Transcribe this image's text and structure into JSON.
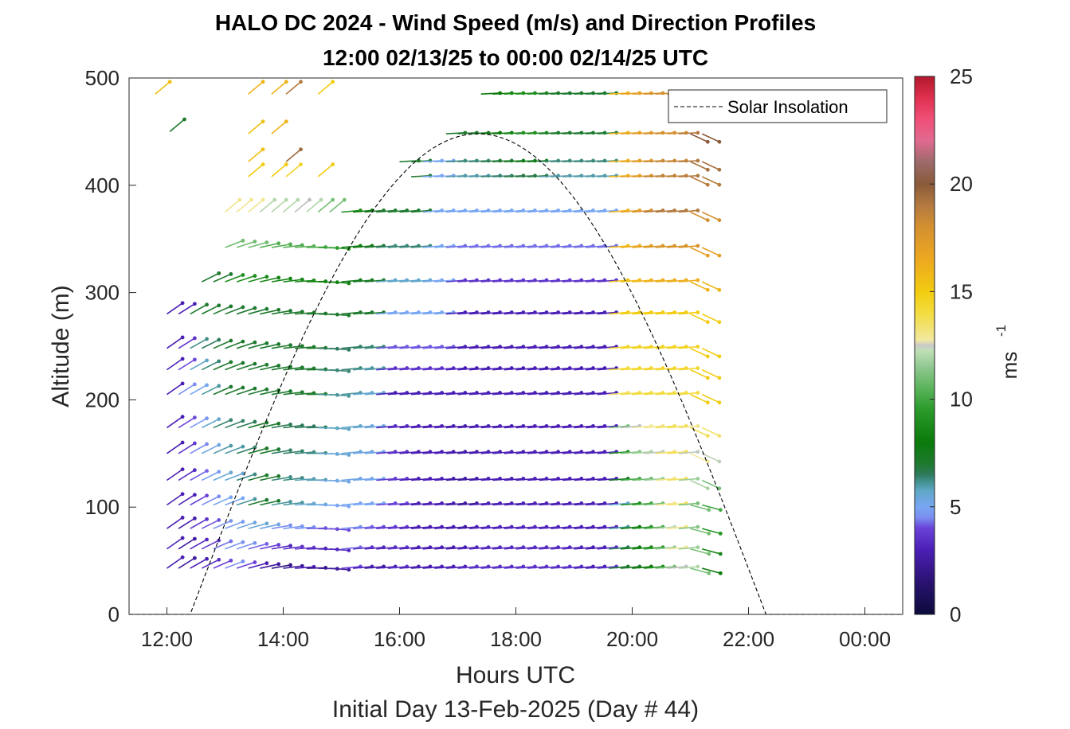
{
  "chart_data": {
    "type": "scatter",
    "title": "HALO DC 2024 - Wind Speed (m/s) and Direction Profiles",
    "subtitle": "12:00 02/13/25 to 00:00 02/14/25  UTC",
    "xlabel": "Hours UTC",
    "x_sublabel": "Initial Day 13-Feb-2025 (Day # 44)",
    "ylabel": "Altitude (m)",
    "x_ticks": [
      "12:00",
      "14:00",
      "16:00",
      "18:00",
      "20:00",
      "22:00",
      "00:00"
    ],
    "x_tick_hours": [
      12,
      14,
      16,
      18,
      20,
      22,
      24
    ],
    "xlim": [
      11.35,
      24.65
    ],
    "y_ticks": [
      "0",
      "100",
      "200",
      "300",
      "400",
      "500"
    ],
    "y_tick_values": [
      0,
      100,
      200,
      300,
      400,
      500
    ],
    "ylim": [
      0,
      500
    ],
    "colorbar": {
      "label": "ms",
      "label_exponent": "-1",
      "ticks": [
        "0",
        "5",
        "10",
        "15",
        "20",
        "25"
      ],
      "tick_values": [
        0,
        5,
        10,
        15,
        20,
        25
      ],
      "range": [
        0,
        25
      ]
    },
    "legend": {
      "entries": [
        "Solar Insolation"
      ],
      "placement": "top-right"
    },
    "solar_insolation": {
      "name": "Solar Insolation",
      "sunrise_hour": 12.4,
      "peak_hour": 17.35,
      "sunset_hour": 22.3,
      "peak_altitude": 448
    },
    "time_start_hour": 12.0,
    "time_step_hours": 0.2,
    "heights": [
      43,
      61,
      80,
      102,
      125,
      150,
      174,
      205,
      228,
      248,
      280,
      310,
      342,
      375,
      408,
      422,
      448,
      485
    ],
    "windowed_heights": [
      {
        "h": 485,
        "t0": 17.4,
        "t1": 22.8
      },
      {
        "h": 448,
        "t0": 16.8,
        "t1": 22.8
      },
      {
        "h": 422,
        "t0": 16.0,
        "t1": 22.8
      },
      {
        "h": 408,
        "t0": 16.2,
        "t1": 22.8
      },
      {
        "h": 375,
        "t0": 13.0,
        "t1": 22.8
      },
      {
        "h": 342,
        "t0": 13.0,
        "t1": 22.8
      },
      {
        "h": 310,
        "t0": 12.6,
        "t1": 22.8
      }
    ],
    "speed_samples": [
      {
        "h": 43,
        "speed": [
          3,
          2.5,
          3,
          3.5,
          4,
          4.5,
          4,
          3,
          2.5,
          2,
          2.5,
          3,
          2,
          2.5,
          2.5,
          4,
          3,
          2.5,
          3,
          3.5,
          3,
          3,
          3,
          3,
          3,
          3.5,
          3.5,
          3.5,
          3.5,
          3.5,
          3.5,
          3.5,
          3.5,
          3.5,
          3.5,
          3,
          3,
          3.5,
          7,
          7,
          8,
          9,
          11,
          12.5,
          12,
          11,
          8
        ]
      },
      {
        "h": 102,
        "speed": [
          3,
          3,
          4,
          4.5,
          5,
          5,
          6,
          7,
          7,
          6,
          6,
          5.5,
          5.5,
          5,
          5,
          5,
          5,
          5,
          4,
          4,
          3,
          3,
          3,
          3,
          2.5,
          2.5,
          3,
          3,
          3,
          3,
          3,
          3,
          3,
          3,
          3,
          3,
          3,
          3,
          5.5,
          9,
          10,
          11,
          13,
          13.5,
          11,
          11,
          10
        ]
      },
      {
        "h": 205,
        "speed": [
          3,
          4.5,
          5,
          6,
          7,
          7,
          7,
          7,
          7,
          7,
          7,
          7,
          7,
          6,
          6,
          6,
          5.5,
          5.5,
          3,
          3,
          3,
          3,
          3,
          3,
          3,
          3,
          3,
          3,
          3,
          3,
          3,
          3,
          3,
          3,
          3,
          3,
          3,
          3,
          13.5,
          14,
          14,
          14,
          14,
          14,
          14,
          15,
          15
        ]
      },
      {
        "h": 280,
        "speed": [
          3,
          3,
          7,
          7,
          7,
          7,
          7,
          7,
          7,
          7,
          7,
          7,
          7,
          7,
          7,
          7,
          7,
          7,
          5,
          5,
          5,
          5,
          5,
          5,
          3,
          3,
          3,
          3,
          3,
          3,
          3,
          3,
          3,
          3,
          3,
          3,
          3,
          3,
          15,
          15,
          15,
          15,
          15,
          15,
          15,
          15,
          15
        ]
      },
      {
        "h": 375,
        "speed": [
          null,
          null,
          null,
          null,
          null,
          13,
          13,
          13,
          12,
          12,
          12,
          12.5,
          12,
          11,
          11,
          9,
          8,
          7,
          7,
          7,
          7,
          7,
          5,
          5,
          5,
          5,
          5,
          5,
          5,
          5,
          5,
          5,
          5,
          5,
          5,
          5,
          5,
          5,
          16,
          17,
          18,
          19,
          19,
          19,
          19,
          18,
          18
        ]
      },
      {
        "h": 448,
        "speed": [
          null,
          null,
          null,
          null,
          null,
          null,
          null,
          null,
          null,
          null,
          null,
          null,
          null,
          null,
          null,
          null,
          null,
          null,
          null,
          null,
          null,
          null,
          null,
          null,
          7,
          7,
          7,
          8,
          8,
          9,
          9,
          9,
          7,
          7,
          7,
          7,
          7,
          7,
          16,
          17,
          17,
          18,
          18,
          18,
          19,
          20,
          20
        ]
      }
    ],
    "scattered_top_points": [
      {
        "hour": 11.8,
        "h": 485,
        "speed": 15.5
      },
      {
        "hour": 12.05,
        "h": 450,
        "speed": 7
      },
      {
        "hour": 13.4,
        "h": 485,
        "speed": 16
      },
      {
        "hour": 13.4,
        "h": 448,
        "speed": 15.5
      },
      {
        "hour": 13.4,
        "h": 422,
        "speed": 15.5
      },
      {
        "hour": 13.4,
        "h": 408,
        "speed": 15
      },
      {
        "hour": 13.8,
        "h": 485,
        "speed": 16
      },
      {
        "hour": 13.8,
        "h": 448,
        "speed": 16
      },
      {
        "hour": 13.8,
        "h": 408,
        "speed": 15
      },
      {
        "hour": 14.05,
        "h": 485,
        "speed": 19
      },
      {
        "hour": 14.05,
        "h": 422,
        "speed": 19.5
      },
      {
        "hour": 14.05,
        "h": 408,
        "speed": 14.5
      },
      {
        "hour": 14.6,
        "h": 485,
        "speed": 15
      },
      {
        "hour": 14.6,
        "h": 408,
        "speed": 15
      }
    ]
  }
}
